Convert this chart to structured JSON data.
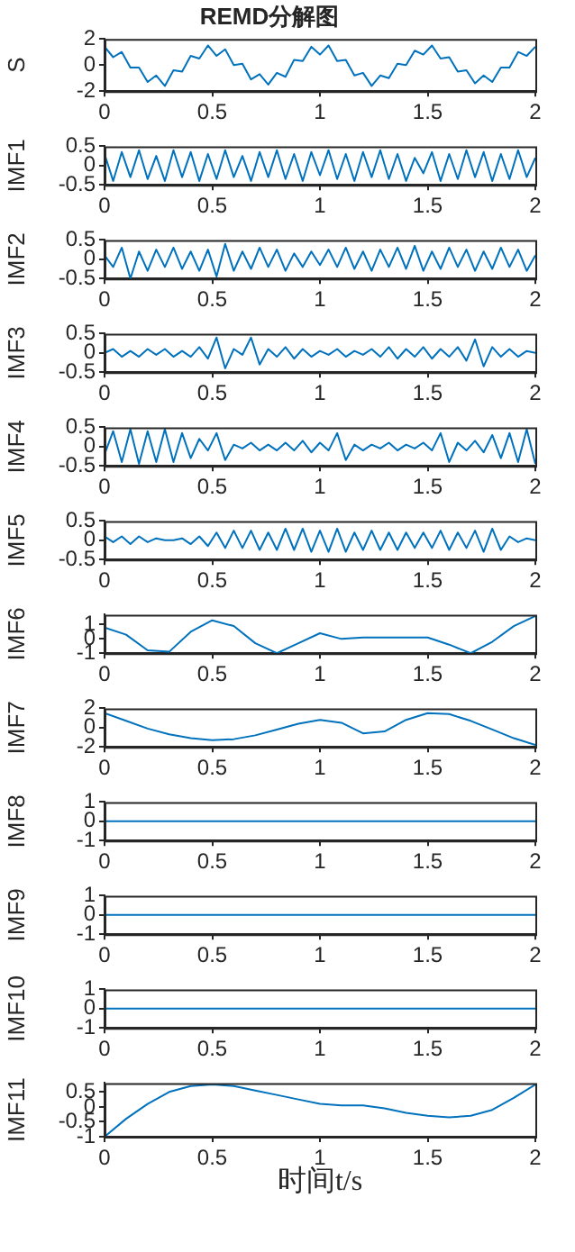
{
  "chart_data": [
    {
      "type": "line",
      "title": "REMD分解图",
      "ylabel": "S",
      "color": "#0072bd",
      "xlim": [
        0,
        2
      ],
      "xticks": [
        0,
        0.5,
        1,
        1.5,
        2
      ],
      "ylim": [
        -2,
        2
      ],
      "yticks": [
        -2,
        0,
        2
      ],
      "x": [
        0,
        0.04,
        0.08,
        0.12,
        0.16,
        0.2,
        0.24,
        0.28,
        0.32,
        0.36,
        0.4,
        0.44,
        0.48,
        0.52,
        0.56,
        0.6,
        0.64,
        0.68,
        0.72,
        0.76,
        0.8,
        0.84,
        0.88,
        0.92,
        0.96,
        1,
        1.04,
        1.08,
        1.12,
        1.16,
        1.2,
        1.24,
        1.28,
        1.32,
        1.36,
        1.4,
        1.44,
        1.48,
        1.52,
        1.56,
        1.6,
        1.64,
        1.68,
        1.72,
        1.76,
        1.8,
        1.84,
        1.88,
        1.92,
        1.96,
        2
      ],
      "values": [
        1.4,
        0.6,
        1,
        -0.2,
        -0.2,
        -1.3,
        -0.8,
        -1.6,
        -0.4,
        -0.5,
        0.7,
        0.5,
        1.5,
        0.7,
        1.2,
        0,
        0.1,
        -1.1,
        -0.7,
        -1.5,
        -0.6,
        -0.9,
        0.4,
        0.3,
        1.4,
        0.8,
        1.5,
        0.3,
        0.4,
        -0.8,
        -0.6,
        -1.6,
        -0.8,
        -1,
        0.1,
        0,
        1.1,
        0.8,
        1.5,
        0.5,
        0.6,
        -0.5,
        -0.4,
        -1.4,
        -0.8,
        -1.3,
        -0.2,
        -0.2,
        1,
        0.7,
        1.4
      ]
    },
    {
      "type": "line",
      "ylabel": "IMF1",
      "color": "#0072bd",
      "xlim": [
        0,
        2
      ],
      "xticks": [
        0,
        0.5,
        1,
        1.5,
        2
      ],
      "ylim": [
        -0.5,
        0.5
      ],
      "yticks": [
        -0.5,
        0,
        0.5
      ],
      "x": [
        0,
        0.04,
        0.08,
        0.12,
        0.16,
        0.2,
        0.24,
        0.28,
        0.32,
        0.36,
        0.4,
        0.44,
        0.48,
        0.52,
        0.56,
        0.6,
        0.64,
        0.68,
        0.72,
        0.76,
        0.8,
        0.84,
        0.88,
        0.92,
        0.96,
        1,
        1.04,
        1.08,
        1.12,
        1.16,
        1.2,
        1.24,
        1.28,
        1.32,
        1.36,
        1.4,
        1.44,
        1.48,
        1.52,
        1.56,
        1.6,
        1.64,
        1.68,
        1.72,
        1.76,
        1.8,
        1.84,
        1.88,
        1.92,
        1.96,
        2
      ],
      "values": [
        0.3,
        -0.4,
        0.35,
        -0.3,
        0.4,
        -0.35,
        0.25,
        -0.4,
        0.4,
        -0.3,
        0.35,
        -0.4,
        0.3,
        -0.35,
        0.4,
        -0.3,
        0.25,
        -0.4,
        0.35,
        -0.3,
        0.4,
        -0.35,
        0.3,
        -0.4,
        0.35,
        -0.25,
        0.4,
        -0.35,
        0.3,
        -0.4,
        0.35,
        -0.3,
        0.4,
        -0.35,
        0.3,
        -0.4,
        0.2,
        -0.2,
        0.35,
        -0.4,
        0.3,
        -0.35,
        0.4,
        -0.3,
        0.35,
        -0.4,
        0.3,
        -0.35,
        0.4,
        -0.3,
        0.2
      ]
    },
    {
      "type": "line",
      "ylabel": "IMF2",
      "color": "#0072bd",
      "xlim": [
        0,
        2
      ],
      "xticks": [
        0,
        0.5,
        1,
        1.5,
        2
      ],
      "ylim": [
        -0.5,
        0.5
      ],
      "yticks": [
        -0.5,
        0,
        0.5
      ],
      "x": [
        0,
        0.04,
        0.08,
        0.12,
        0.16,
        0.2,
        0.24,
        0.28,
        0.32,
        0.36,
        0.4,
        0.44,
        0.48,
        0.52,
        0.56,
        0.6,
        0.64,
        0.68,
        0.72,
        0.76,
        0.8,
        0.84,
        0.88,
        0.92,
        0.96,
        1,
        1.04,
        1.08,
        1.12,
        1.16,
        1.2,
        1.24,
        1.28,
        1.32,
        1.36,
        1.4,
        1.44,
        1.48,
        1.52,
        1.56,
        1.6,
        1.64,
        1.68,
        1.72,
        1.76,
        1.8,
        1.84,
        1.88,
        1.92,
        1.96,
        2
      ],
      "values": [
        0.1,
        -0.2,
        0.3,
        -0.5,
        0.2,
        -0.3,
        0.25,
        -0.2,
        0.3,
        -0.25,
        0.2,
        -0.3,
        0.25,
        -0.45,
        0.4,
        -0.3,
        0.2,
        -0.25,
        0.3,
        -0.2,
        0.25,
        -0.3,
        0.15,
        -0.2,
        0.2,
        -0.15,
        0.25,
        -0.2,
        0.3,
        -0.25,
        0.2,
        -0.3,
        0.25,
        -0.2,
        0.3,
        -0.25,
        0.35,
        -0.3,
        0.2,
        -0.25,
        0.3,
        -0.2,
        0.25,
        -0.3,
        0.2,
        -0.25,
        0.3,
        -0.2,
        0.25,
        -0.3,
        0.1
      ]
    },
    {
      "type": "line",
      "ylabel": "IMF3",
      "color": "#0072bd",
      "xlim": [
        0,
        2
      ],
      "xticks": [
        0,
        0.5,
        1,
        1.5,
        2
      ],
      "ylim": [
        -0.5,
        0.5
      ],
      "yticks": [
        -0.5,
        0,
        0.5
      ],
      "x": [
        0,
        0.04,
        0.08,
        0.12,
        0.16,
        0.2,
        0.24,
        0.28,
        0.32,
        0.36,
        0.4,
        0.44,
        0.48,
        0.52,
        0.56,
        0.6,
        0.64,
        0.68,
        0.72,
        0.76,
        0.8,
        0.84,
        0.88,
        0.92,
        0.96,
        1,
        1.04,
        1.08,
        1.12,
        1.16,
        1.2,
        1.24,
        1.28,
        1.32,
        1.36,
        1.4,
        1.44,
        1.48,
        1.52,
        1.56,
        1.6,
        1.64,
        1.68,
        1.72,
        1.76,
        1.8,
        1.84,
        1.88,
        1.92,
        1.96,
        2
      ],
      "values": [
        0,
        0.1,
        -0.1,
        0.05,
        -0.1,
        0.1,
        -0.05,
        0.1,
        -0.1,
        0.05,
        -0.1,
        0.15,
        -0.15,
        0.4,
        -0.4,
        0.1,
        -0.05,
        0.4,
        -0.3,
        0.1,
        -0.1,
        0.15,
        -0.15,
        0.1,
        -0.1,
        0.05,
        -0.05,
        0.1,
        -0.1,
        0.05,
        -0.05,
        0.1,
        -0.1,
        0.15,
        -0.15,
        0.1,
        -0.1,
        0.15,
        -0.15,
        0.1,
        -0.1,
        0.15,
        -0.2,
        0.35,
        -0.35,
        0.15,
        -0.1,
        0.1,
        -0.1,
        0.05,
        0
      ]
    },
    {
      "type": "line",
      "ylabel": "IMF4",
      "color": "#0072bd",
      "xlim": [
        0,
        2
      ],
      "xticks": [
        0,
        0.5,
        1,
        1.5,
        2
      ],
      "ylim": [
        -0.5,
        0.5
      ],
      "yticks": [
        -0.5,
        0,
        0.5
      ],
      "x": [
        0,
        0.04,
        0.08,
        0.12,
        0.16,
        0.2,
        0.24,
        0.28,
        0.32,
        0.36,
        0.4,
        0.44,
        0.48,
        0.52,
        0.56,
        0.6,
        0.64,
        0.68,
        0.72,
        0.76,
        0.8,
        0.84,
        0.88,
        0.92,
        0.96,
        1,
        1.04,
        1.08,
        1.12,
        1.16,
        1.2,
        1.24,
        1.28,
        1.32,
        1.36,
        1.4,
        1.44,
        1.48,
        1.52,
        1.56,
        1.6,
        1.64,
        1.68,
        1.72,
        1.76,
        1.8,
        1.84,
        1.88,
        1.92,
        1.96,
        2
      ],
      "values": [
        -0.2,
        0.4,
        -0.4,
        0.45,
        -0.45,
        0.4,
        -0.4,
        0.45,
        -0.4,
        0.35,
        -0.3,
        0.2,
        -0.1,
        0.35,
        -0.35,
        0.05,
        -0.05,
        0.1,
        -0.1,
        0.05,
        -0.1,
        0.1,
        -0.1,
        0.15,
        -0.15,
        0.1,
        -0.1,
        0.35,
        -0.35,
        0.05,
        -0.1,
        0.05,
        -0.05,
        0.1,
        -0.1,
        0.05,
        -0.05,
        0.1,
        -0.1,
        0.35,
        -0.4,
        0.1,
        -0.1,
        0.15,
        -0.15,
        0.3,
        -0.3,
        0.35,
        -0.4,
        0.45,
        -0.45
      ]
    },
    {
      "type": "line",
      "ylabel": "IMF5",
      "color": "#0072bd",
      "xlim": [
        0,
        2
      ],
      "xticks": [
        0,
        0.5,
        1,
        1.5,
        2
      ],
      "ylim": [
        -0.5,
        0.5
      ],
      "yticks": [
        -0.5,
        0,
        0.5
      ],
      "x": [
        0,
        0.04,
        0.08,
        0.12,
        0.16,
        0.2,
        0.24,
        0.28,
        0.32,
        0.36,
        0.4,
        0.44,
        0.48,
        0.52,
        0.56,
        0.6,
        0.64,
        0.68,
        0.72,
        0.76,
        0.8,
        0.84,
        0.88,
        0.92,
        0.96,
        1,
        1.04,
        1.08,
        1.12,
        1.16,
        1.2,
        1.24,
        1.28,
        1.32,
        1.36,
        1.4,
        1.44,
        1.48,
        1.52,
        1.56,
        1.6,
        1.64,
        1.68,
        1.72,
        1.76,
        1.8,
        1.84,
        1.88,
        1.92,
        1.96,
        2
      ],
      "values": [
        0.1,
        -0.05,
        0.1,
        -0.1,
        0.1,
        -0.05,
        0.05,
        0,
        0,
        0.05,
        -0.1,
        0.1,
        -0.15,
        0.2,
        -0.2,
        0.25,
        -0.2,
        0.25,
        -0.25,
        0.2,
        -0.25,
        0.3,
        -0.25,
        0.3,
        -0.3,
        0.25,
        -0.3,
        0.3,
        -0.3,
        0.2,
        -0.25,
        0.25,
        -0.25,
        0.2,
        -0.25,
        0.2,
        -0.2,
        0.2,
        -0.2,
        0.25,
        -0.25,
        0.2,
        -0.2,
        0.25,
        -0.3,
        0.3,
        -0.25,
        0.1,
        -0.05,
        0.05,
        0
      ]
    },
    {
      "type": "line",
      "ylabel": "IMF6",
      "color": "#0072bd",
      "xlim": [
        0,
        2
      ],
      "xticks": [
        0,
        0.5,
        1,
        1.5,
        2
      ],
      "ylim": [
        -1,
        1.7
      ],
      "yticks": [
        -1,
        0,
        1
      ],
      "x": [
        0,
        0.1,
        0.2,
        0.3,
        0.4,
        0.5,
        0.6,
        0.7,
        0.8,
        0.9,
        1,
        1.1,
        1.2,
        1.3,
        1.4,
        1.5,
        1.6,
        1.7,
        1.8,
        1.9,
        2
      ],
      "values": [
        0.8,
        0.3,
        -0.8,
        -0.9,
        0.5,
        1.3,
        0.9,
        -0.3,
        -1,
        -0.3,
        0.4,
        0,
        0.1,
        0.1,
        0.1,
        0.1,
        -0.4,
        -1,
        -0.2,
        0.9,
        1.6
      ]
    },
    {
      "type": "line",
      "ylabel": "IMF7",
      "color": "#0072bd",
      "xlim": [
        0,
        2
      ],
      "xticks": [
        0,
        0.5,
        1,
        1.5,
        2
      ],
      "ylim": [
        -2,
        2
      ],
      "yticks": [
        -2,
        0,
        2
      ],
      "x": [
        0,
        0.1,
        0.2,
        0.3,
        0.4,
        0.5,
        0.6,
        0.7,
        0.8,
        0.9,
        1,
        1.1,
        1.2,
        1.3,
        1.4,
        1.5,
        1.6,
        1.7,
        1.8,
        1.9,
        2
      ],
      "values": [
        1.5,
        0.7,
        -0.1,
        -0.7,
        -1.1,
        -1.3,
        -1.2,
        -0.8,
        -0.2,
        0.4,
        0.8,
        0.5,
        -0.6,
        -0.4,
        0.8,
        1.5,
        1.4,
        0.7,
        -0.2,
        -1.1,
        -1.8
      ]
    },
    {
      "type": "line",
      "ylabel": "IMF8",
      "color": "#0072bd",
      "xlim": [
        0,
        2
      ],
      "xticks": [
        0,
        0.5,
        1,
        1.5,
        2
      ],
      "ylim": [
        -1,
        1
      ],
      "yticks": [
        -1,
        0,
        1
      ],
      "x": [
        0,
        2
      ],
      "values": [
        0,
        0
      ]
    },
    {
      "type": "line",
      "ylabel": "IMF9",
      "color": "#0072bd",
      "xlim": [
        0,
        2
      ],
      "xticks": [
        0,
        0.5,
        1,
        1.5,
        2
      ],
      "ylim": [
        -1,
        1
      ],
      "yticks": [
        -1,
        0,
        1
      ],
      "x": [
        0,
        2
      ],
      "values": [
        0,
        0
      ]
    },
    {
      "type": "line",
      "ylabel": "IMF10",
      "color": "#0072bd",
      "xlim": [
        0,
        2
      ],
      "xticks": [
        0,
        0.5,
        1,
        1.5,
        2
      ],
      "ylim": [
        -1,
        1
      ],
      "yticks": [
        -1,
        0,
        1
      ],
      "x": [
        0,
        2
      ],
      "values": [
        0,
        0
      ]
    },
    {
      "type": "line",
      "ylabel": "IMF11",
      "xlabel": "时间t/s",
      "color": "#0072bd",
      "xlim": [
        0,
        2
      ],
      "xticks": [
        0,
        0.5,
        1,
        1.5,
        2
      ],
      "ylim": [
        -1,
        0.8
      ],
      "yticks": [
        -1,
        -0.5,
        0,
        0.5
      ],
      "x": [
        0,
        0.1,
        0.2,
        0.3,
        0.4,
        0.5,
        0.6,
        0.7,
        0.8,
        0.9,
        1,
        1.1,
        1.2,
        1.3,
        1.4,
        1.5,
        1.6,
        1.7,
        1.8,
        1.9,
        2
      ],
      "values": [
        -1,
        -0.4,
        0.1,
        0.5,
        0.7,
        0.75,
        0.7,
        0.55,
        0.4,
        0.25,
        0.1,
        0.05,
        0.05,
        -0.05,
        -0.2,
        -0.3,
        -0.35,
        -0.3,
        -0.1,
        0.3,
        0.75
      ]
    }
  ]
}
